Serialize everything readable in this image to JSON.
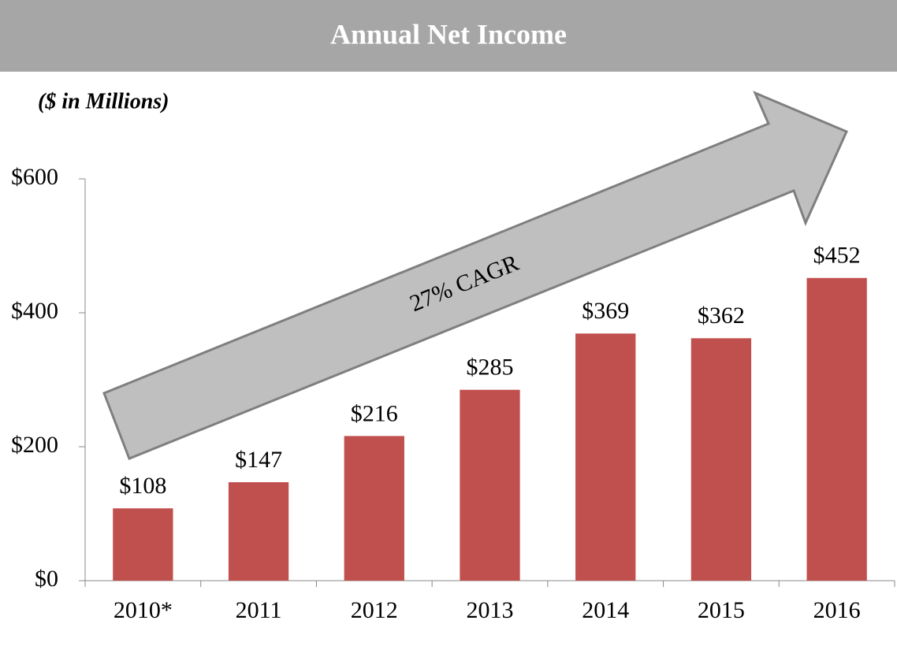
{
  "chart_data": {
    "type": "bar",
    "title": "Annual Net Income",
    "subtitle": "($ in Millions)",
    "annotation": "27% CAGR",
    "categories": [
      "2010*",
      "2011",
      "2012",
      "2013",
      "2014",
      "2015",
      "2016"
    ],
    "values": [
      108,
      147,
      216,
      285,
      369,
      362,
      452
    ],
    "value_labels": [
      "$108",
      "$147",
      "$216",
      "$285",
      "$369",
      "$362",
      "$452"
    ],
    "color": "#c0504d",
    "ylim": [
      0,
      600
    ],
    "yticks": [
      {
        "value": 0,
        "label": "$0"
      },
      {
        "value": 200,
        "label": "$200"
      },
      {
        "value": 400,
        "label": "$400"
      },
      {
        "value": 600,
        "label": "$600"
      }
    ],
    "grid": false
  }
}
